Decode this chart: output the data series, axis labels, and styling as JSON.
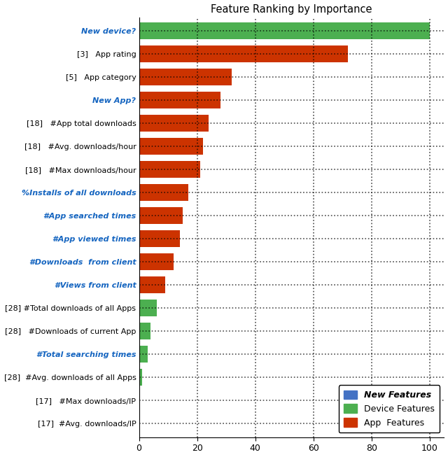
{
  "title": "Feature Ranking by Importance",
  "labels": [
    "New device?",
    "[3]   App rating",
    "[5]   App category",
    "New App?",
    "[18]   #App total downloads",
    "[18]   #Avg. downloads/hour",
    "[18]   #Max downloads/hour",
    "%Installs of all downloads",
    "#App searched times",
    "#App viewed times",
    "#Downloads  from client",
    "#Views from client",
    "[28] #Total downloads of all Apps",
    "[28]   #Downloads of current App",
    "#Total searching times",
    "[28]  #Avg. downloads of all Apps",
    "[17]   #Max downloads/IP",
    "[17]  #Avg. downloads/IP"
  ],
  "values": [
    100,
    72,
    32,
    28,
    24,
    22,
    21,
    17,
    15,
    14,
    12,
    9,
    6,
    4,
    3,
    1,
    0.4,
    0.2
  ],
  "colors": [
    "#4caf50",
    "#cc3300",
    "#cc3300",
    "#cc3300",
    "#cc3300",
    "#cc3300",
    "#cc3300",
    "#cc3300",
    "#cc3300",
    "#cc3300",
    "#cc3300",
    "#cc3300",
    "#4caf50",
    "#4caf50",
    "#4caf50",
    "#4caf50",
    "#4caf50",
    "#4caf50"
  ],
  "blue_label_indices": [
    0,
    3,
    7,
    8,
    9,
    10,
    11,
    14
  ],
  "legend_labels": [
    "New Features",
    "Device Features",
    "App  Features"
  ],
  "legend_colors": [
    "#4472c4",
    "#4caf50",
    "#cc3300"
  ],
  "xlim": [
    0,
    105
  ],
  "xticks": [
    0,
    20,
    40,
    60,
    80,
    100
  ]
}
